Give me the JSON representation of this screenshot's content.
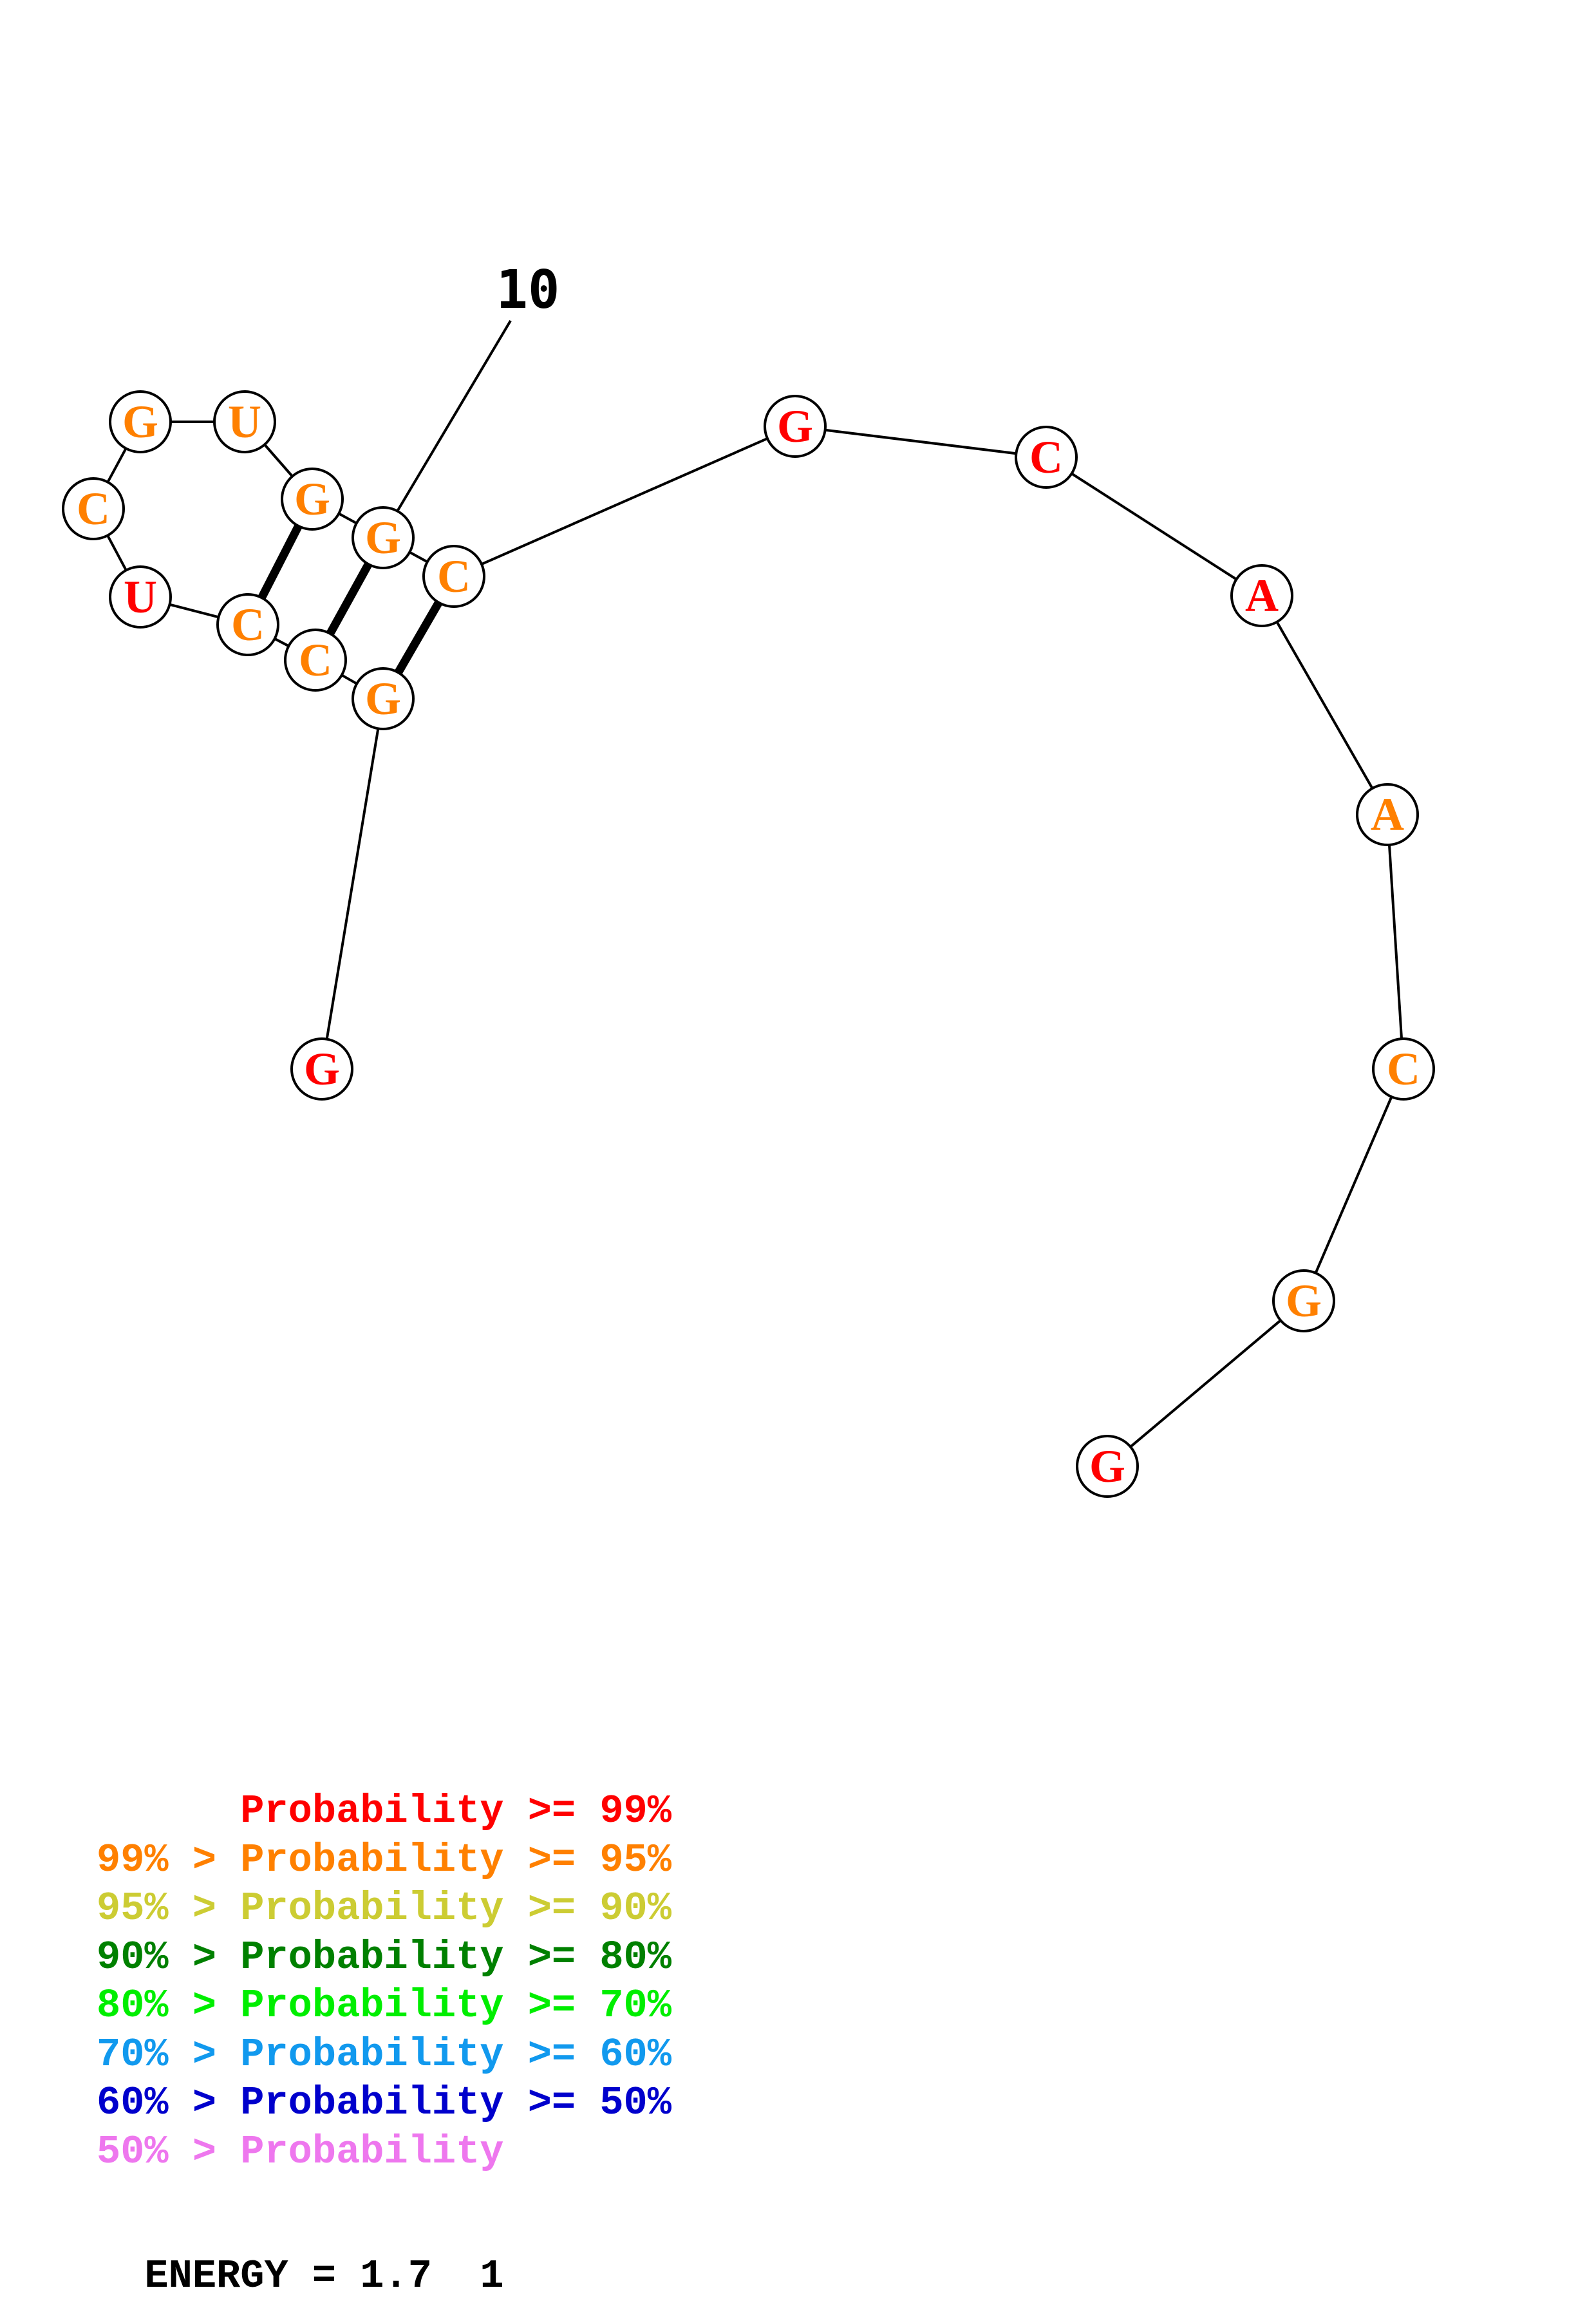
{
  "structure": {
    "nucleotides": [
      {
        "base": "G",
        "color": "#ff0000"
      },
      {
        "base": "G",
        "color": "#ff8000"
      },
      {
        "base": "C",
        "color": "#ff8000"
      },
      {
        "base": "C",
        "color": "#ff8000"
      },
      {
        "base": "U",
        "color": "#ff0000"
      },
      {
        "base": "C",
        "color": "#ff8000"
      },
      {
        "base": "G",
        "color": "#ff8000"
      },
      {
        "base": "U",
        "color": "#ff8000"
      },
      {
        "base": "G",
        "color": "#ff8000"
      },
      {
        "base": "G",
        "color": "#ff8000"
      },
      {
        "base": "C",
        "color": "#ff8000"
      },
      {
        "base": "G",
        "color": "#ff0000"
      },
      {
        "base": "C",
        "color": "#ff0000"
      },
      {
        "base": "A",
        "color": "#ff0000"
      },
      {
        "base": "A",
        "color": "#ff8000"
      },
      {
        "base": "C",
        "color": "#ff8000"
      },
      {
        "base": "G",
        "color": "#ff8000"
      },
      {
        "base": "G",
        "color": "#ff0000"
      }
    ],
    "pairs": [
      [
        2,
        11
      ],
      [
        3,
        10
      ],
      [
        4,
        9
      ]
    ],
    "position_label": "10"
  },
  "legend": {
    "rows": [
      {
        "prefix": "",
        "middle": "Probability >= 99%",
        "color": "#ff0000"
      },
      {
        "prefix": "99% > ",
        "middle": "Probability >= 95%",
        "color": "#ff8000"
      },
      {
        "prefix": "95% > ",
        "middle": "Probability >= 90%",
        "color": "#cccc33"
      },
      {
        "prefix": "90% > ",
        "middle": "Probability >= 80%",
        "color": "#008000"
      },
      {
        "prefix": "80% > ",
        "middle": "Probability >= 70%",
        "color": "#00ee00"
      },
      {
        "prefix": "70% > ",
        "middle": "Probability >= 60%",
        "color": "#1199ee"
      },
      {
        "prefix": "60% > ",
        "middle": "Probability >= 50%",
        "color": "#0000cc"
      },
      {
        "prefix": "50% > ",
        "middle": "Probability",
        "color": "#ee77ee"
      }
    ]
  },
  "energy": {
    "label": "ENERGY = 1.7",
    "number": "1"
  }
}
